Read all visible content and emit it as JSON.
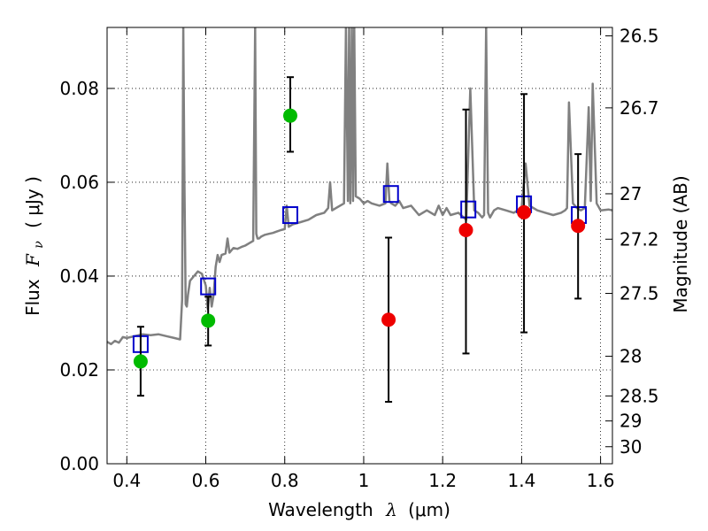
{
  "chart_data": {
    "type": "scatter",
    "xlabel": {
      "text": "Wavelength",
      "symbol": "λ",
      "unit": "(μm)"
    },
    "ylabel": {
      "text": "Flux",
      "symbol": "F",
      "sub": "ν",
      "unit": "( μJy )"
    },
    "y2label": "Magnitude (AB)",
    "xlim": [
      0.35,
      1.63
    ],
    "ylim": [
      0.0,
      0.093
    ],
    "x_ticks": [
      0.4,
      0.6,
      0.8,
      1.0,
      1.2,
      1.4,
      1.6
    ],
    "x_tick_labels": [
      "0.4",
      "0.6",
      "0.8",
      "1",
      "1.2",
      "1.4",
      "1.6"
    ],
    "y_ticks": [
      0.0,
      0.02,
      0.04,
      0.06,
      0.08
    ],
    "y_tick_labels": [
      "0.00",
      "0.02",
      "0.04",
      "0.06",
      "0.08"
    ],
    "y2_ticks": [
      "26.5",
      "26.7",
      "27",
      "27.2",
      "27.5",
      "28",
      "28.5",
      "29",
      "30"
    ],
    "grid": true,
    "colors": {
      "model": "#808080",
      "model_points": "#0000cc",
      "detections": "#00bb00",
      "upper": "#ee0000",
      "errorbars": "#000000"
    },
    "series": [
      {
        "marker": "square",
        "points": [
          {
            "x": 0.435,
            "y": 0.0255
          },
          {
            "x": 0.606,
            "y": 0.0378
          },
          {
            "x": 0.814,
            "y": 0.053
          },
          {
            "x": 1.069,
            "y": 0.0575
          },
          {
            "x": 1.265,
            "y": 0.0542
          },
          {
            "x": 1.406,
            "y": 0.0553
          },
          {
            "x": 1.545,
            "y": 0.053
          }
        ]
      },
      {
        "marker": "circle",
        "color_key": "detections",
        "points": [
          {
            "x": 0.435,
            "y": 0.0218,
            "ylow": 0.0145,
            "yhigh": 0.0292
          },
          {
            "x": 0.606,
            "y": 0.0305,
            "ylow": 0.0252,
            "yhigh": 0.0356
          },
          {
            "x": 0.814,
            "y": 0.0742,
            "ylow": 0.0665,
            "yhigh": 0.0824
          }
        ]
      },
      {
        "marker": "circle",
        "color_key": "upper",
        "points": [
          {
            "x": 1.063,
            "y": 0.0307,
            "ylow": 0.0132,
            "yhigh": 0.0482
          },
          {
            "x": 1.259,
            "y": 0.0498,
            "ylow": 0.0235,
            "yhigh": 0.0755
          },
          {
            "x": 1.406,
            "y": 0.0536,
            "ylow": 0.028,
            "yhigh": 0.0788
          },
          {
            "x": 1.543,
            "y": 0.0507,
            "ylow": 0.0352,
            "yhigh": 0.066
          }
        ]
      }
    ],
    "model_spectrum": {
      "x": [
        0.35,
        0.36,
        0.37,
        0.38,
        0.39,
        0.4,
        0.42,
        0.44,
        0.46,
        0.48,
        0.5,
        0.52,
        0.535,
        0.54,
        0.543,
        0.546,
        0.549,
        0.552,
        0.555,
        0.56,
        0.57,
        0.58,
        0.59,
        0.6,
        0.605,
        0.61,
        0.615,
        0.62,
        0.625,
        0.63,
        0.635,
        0.64,
        0.65,
        0.655,
        0.66,
        0.665,
        0.67,
        0.68,
        0.69,
        0.7,
        0.71,
        0.72,
        0.725,
        0.728,
        0.731,
        0.735,
        0.74,
        0.75,
        0.76,
        0.77,
        0.78,
        0.79,
        0.8,
        0.805,
        0.81,
        0.82,
        0.84,
        0.86,
        0.88,
        0.9,
        0.91,
        0.915,
        0.92,
        0.93,
        0.94,
        0.95,
        0.955,
        0.96,
        0.963,
        0.966,
        0.97,
        0.973,
        0.976,
        0.98,
        0.99,
        1.0,
        1.01,
        1.02,
        1.04,
        1.055,
        1.06,
        1.065,
        1.07,
        1.08,
        1.09,
        1.1,
        1.12,
        1.14,
        1.16,
        1.18,
        1.19,
        1.2,
        1.21,
        1.22,
        1.24,
        1.26,
        1.27,
        1.28,
        1.29,
        1.3,
        1.305,
        1.31,
        1.315,
        1.32,
        1.33,
        1.34,
        1.36,
        1.38,
        1.4,
        1.41,
        1.42,
        1.44,
        1.46,
        1.48,
        1.5,
        1.51,
        1.515,
        1.52,
        1.53,
        1.54,
        1.55,
        1.56,
        1.57,
        1.575,
        1.58,
        1.59,
        1.6,
        1.62,
        1.63
      ],
      "y": [
        0.026,
        0.0255,
        0.0262,
        0.0258,
        0.027,
        0.0268,
        0.0272,
        0.0276,
        0.0274,
        0.0276,
        0.0272,
        0.0268,
        0.0265,
        0.035,
        0.093,
        0.06,
        0.034,
        0.0335,
        0.036,
        0.039,
        0.04,
        0.041,
        0.0405,
        0.038,
        0.033,
        0.0375,
        0.0335,
        0.036,
        0.042,
        0.0445,
        0.043,
        0.0445,
        0.0448,
        0.048,
        0.045,
        0.0455,
        0.046,
        0.0458,
        0.0462,
        0.0465,
        0.047,
        0.0475,
        0.093,
        0.049,
        0.048,
        0.048,
        0.0484,
        0.0488,
        0.049,
        0.0492,
        0.0495,
        0.0498,
        0.05,
        0.055,
        0.0505,
        0.051,
        0.0515,
        0.052,
        0.053,
        0.0535,
        0.0545,
        0.06,
        0.054,
        0.0545,
        0.055,
        0.0555,
        0.093,
        0.056,
        0.093,
        0.0555,
        0.093,
        0.056,
        0.093,
        0.057,
        0.0565,
        0.0555,
        0.056,
        0.0555,
        0.055,
        0.0555,
        0.064,
        0.056,
        0.0555,
        0.055,
        0.056,
        0.0545,
        0.055,
        0.053,
        0.054,
        0.053,
        0.055,
        0.053,
        0.0545,
        0.053,
        0.0535,
        0.052,
        0.08,
        0.054,
        0.0535,
        0.0525,
        0.053,
        0.093,
        0.0535,
        0.0525,
        0.054,
        0.0545,
        0.054,
        0.0535,
        0.0545,
        0.064,
        0.055,
        0.054,
        0.0535,
        0.053,
        0.0535,
        0.054,
        0.0545,
        0.077,
        0.0555,
        0.0545,
        0.054,
        0.0545,
        0.076,
        0.056,
        0.081,
        0.0555,
        0.054,
        0.0542,
        0.054
      ]
    }
  }
}
